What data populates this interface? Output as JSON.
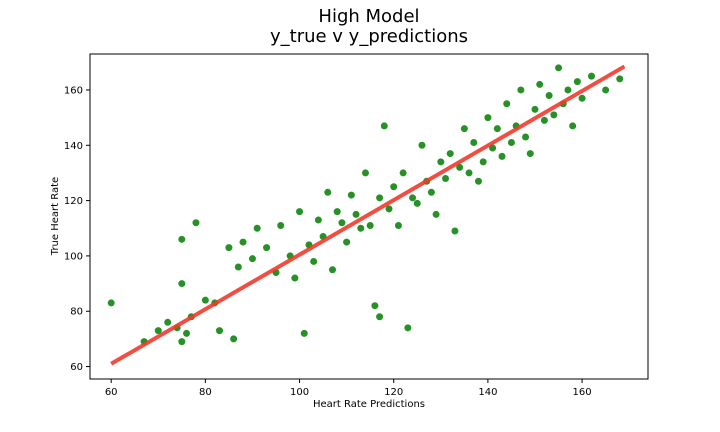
{
  "chart_data": {
    "type": "scatter",
    "title": "High Model",
    "subtitle": "y_true v y_predictions",
    "xlabel": "Heart Rate Predictions",
    "ylabel": "True Heart Rate",
    "xlim": [
      55.5,
      174
    ],
    "ylim": [
      55.5,
      173
    ],
    "x_ticks": [
      60,
      80,
      100,
      120,
      140,
      160
    ],
    "y_ticks": [
      60,
      80,
      100,
      120,
      140,
      160
    ],
    "grid": false,
    "point_color": "#007f00",
    "line_color": "#ef3b2c",
    "regression_line": {
      "x": [
        60,
        169
      ],
      "y": [
        61,
        168.5
      ]
    },
    "series": [
      {
        "points": [
          [
            60,
            83
          ],
          [
            67,
            69
          ],
          [
            70,
            73
          ],
          [
            72,
            76
          ],
          [
            74,
            74
          ],
          [
            75,
            69
          ],
          [
            75,
            90
          ],
          [
            75,
            106
          ],
          [
            76,
            72
          ],
          [
            77,
            78
          ],
          [
            78,
            112
          ],
          [
            80,
            84
          ],
          [
            82,
            83
          ],
          [
            83,
            73
          ],
          [
            85,
            103
          ],
          [
            86,
            70
          ],
          [
            87,
            96
          ],
          [
            88,
            105
          ],
          [
            90,
            99
          ],
          [
            91,
            110
          ],
          [
            93,
            103
          ],
          [
            95,
            94
          ],
          [
            96,
            111
          ],
          [
            98,
            100
          ],
          [
            99,
            92
          ],
          [
            100,
            116
          ],
          [
            101,
            72
          ],
          [
            102,
            104
          ],
          [
            103,
            98
          ],
          [
            104,
            113
          ],
          [
            105,
            107
          ],
          [
            106,
            123
          ],
          [
            107,
            95
          ],
          [
            108,
            116
          ],
          [
            109,
            112
          ],
          [
            110,
            105
          ],
          [
            111,
            122
          ],
          [
            112,
            115
          ],
          [
            113,
            110
          ],
          [
            114,
            130
          ],
          [
            115,
            111
          ],
          [
            116,
            82
          ],
          [
            117,
            78
          ],
          [
            117,
            121
          ],
          [
            118,
            147
          ],
          [
            119,
            117
          ],
          [
            120,
            125
          ],
          [
            121,
            111
          ],
          [
            122,
            130
          ],
          [
            123,
            74
          ],
          [
            124,
            121
          ],
          [
            125,
            119
          ],
          [
            126,
            140
          ],
          [
            127,
            127
          ],
          [
            128,
            123
          ],
          [
            129,
            115
          ],
          [
            130,
            134
          ],
          [
            131,
            128
          ],
          [
            132,
            137
          ],
          [
            133,
            109
          ],
          [
            134,
            132
          ],
          [
            135,
            146
          ],
          [
            136,
            130
          ],
          [
            137,
            141
          ],
          [
            138,
            127
          ],
          [
            139,
            134
          ],
          [
            140,
            150
          ],
          [
            141,
            139
          ],
          [
            142,
            146
          ],
          [
            143,
            136
          ],
          [
            144,
            155
          ],
          [
            145,
            141
          ],
          [
            146,
            147
          ],
          [
            147,
            160
          ],
          [
            148,
            143
          ],
          [
            149,
            137
          ],
          [
            150,
            153
          ],
          [
            151,
            162
          ],
          [
            152,
            149
          ],
          [
            153,
            158
          ],
          [
            154,
            151
          ],
          [
            155,
            168
          ],
          [
            156,
            155
          ],
          [
            157,
            160
          ],
          [
            158,
            147
          ],
          [
            159,
            163
          ],
          [
            160,
            157
          ],
          [
            162,
            165
          ],
          [
            165,
            160
          ],
          [
            168,
            164
          ]
        ]
      }
    ]
  }
}
